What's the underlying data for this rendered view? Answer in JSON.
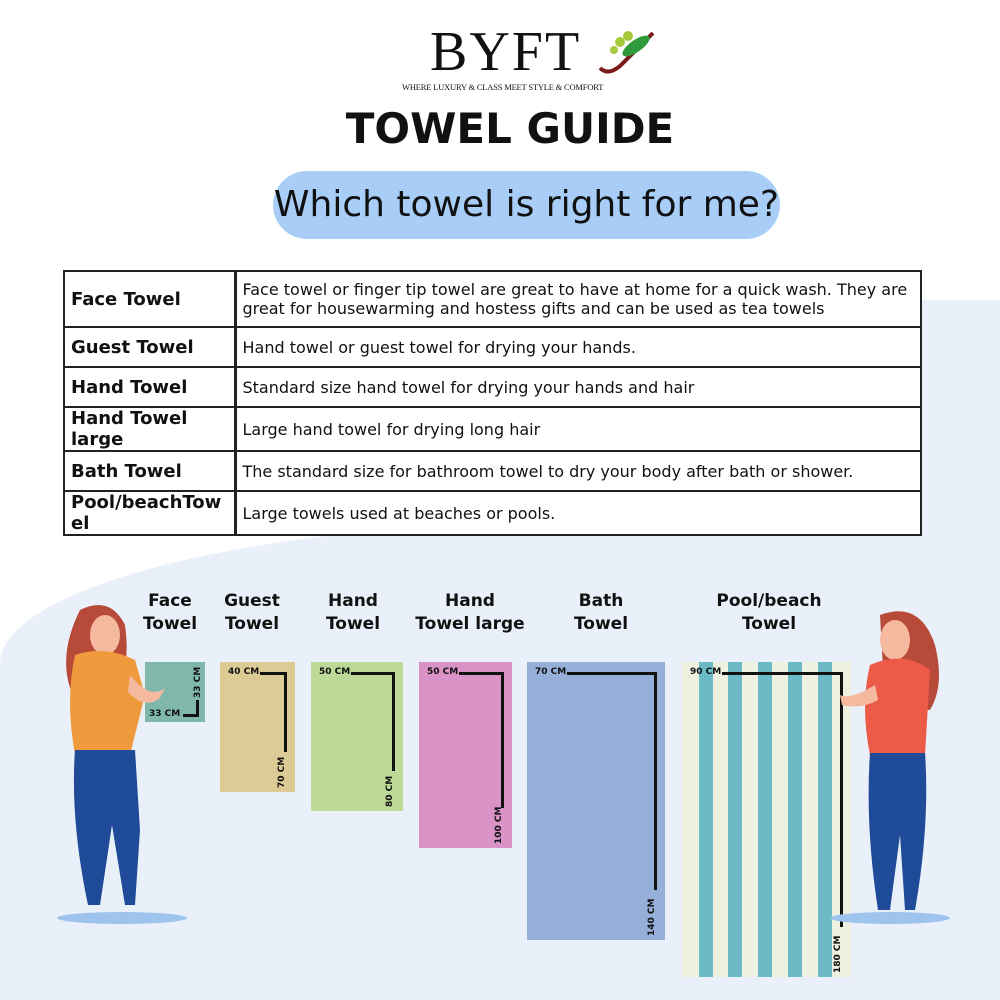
{
  "brand": {
    "name": "BYFT",
    "tagline": "WHERE LUXURY & CLASS MEET STYLE & COMFORT"
  },
  "title": "TOWEL GUIDE",
  "subtitle": "Which towel is right for me?",
  "table": [
    {
      "name": "Face Towel",
      "desc": "Face towel or finger tip towel are great to have at home for a quick wash. They are great for housewarming and hostess gifts and can be used as tea towels"
    },
    {
      "name": "Guest Towel",
      "desc": "Hand towel or guest towel for drying your hands."
    },
    {
      "name": "Hand Towel",
      "desc": "Standard size hand towel for drying your hands and hair"
    },
    {
      "name": "Hand Towel large",
      "desc": "Large hand towel for drying long hair"
    },
    {
      "name": "Bath Towel",
      "desc": "The standard size for bathroom towel to dry your body after bath or shower."
    },
    {
      "name": "Pool/beachTowel",
      "desc": "Large towels used at beaches or pools."
    }
  ],
  "towels": [
    {
      "label1": "Face",
      "label2": "Towel",
      "width": "33 CM",
      "height": "33 CM",
      "color": "#7fb8aa"
    },
    {
      "label1": "Guest",
      "label2": "Towel",
      "width": "40 CM",
      "height": "70 CM",
      "color": "#dccb95"
    },
    {
      "label1": "Hand",
      "label2": "Towel",
      "width": "50 CM",
      "height": "80 CM",
      "color": "#bcd997"
    },
    {
      "label1": "Hand",
      "label2": "Towel large",
      "width": "50 CM",
      "height": "100 CM",
      "color": "#da93c6"
    },
    {
      "label1": "Bath",
      "label2": "Towel",
      "width": "70 CM",
      "height": "140 CM",
      "color": "#96afd9"
    },
    {
      "label1": "Pool/beach",
      "label2": "Towel",
      "width": "90 CM",
      "height": "180 CM",
      "color": "#eef0e0",
      "stripe": "#6bbac6"
    }
  ]
}
